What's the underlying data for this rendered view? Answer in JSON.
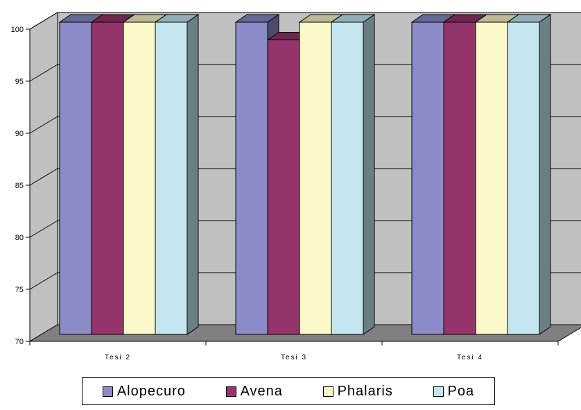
{
  "chart_data": {
    "type": "bar",
    "three_d": true,
    "categories": [
      "Tesi 2",
      "Tesi 3",
      "Tesi 4"
    ],
    "series": [
      {
        "name": "Alopecuro",
        "values": [
          100,
          100,
          100
        ],
        "color": "#8B8BC7"
      },
      {
        "name": "Avena",
        "values": [
          100,
          98.3,
          100
        ],
        "color": "#93356A"
      },
      {
        "name": "Phalaris",
        "values": [
          100,
          100,
          100
        ],
        "color": "#FAF8C8"
      },
      {
        "name": "Poa",
        "values": [
          100,
          100,
          100
        ],
        "color": "#C3E6EF"
      }
    ],
    "ylim": [
      70,
      100
    ],
    "yticks": [
      "70",
      "75",
      "80",
      "85",
      "90",
      "95",
      "100"
    ],
    "grid": true,
    "legend_position": "bottom",
    "colors": {
      "wall": "#C0C0C0",
      "floor": "#808080",
      "gridline": "#000000"
    }
  }
}
